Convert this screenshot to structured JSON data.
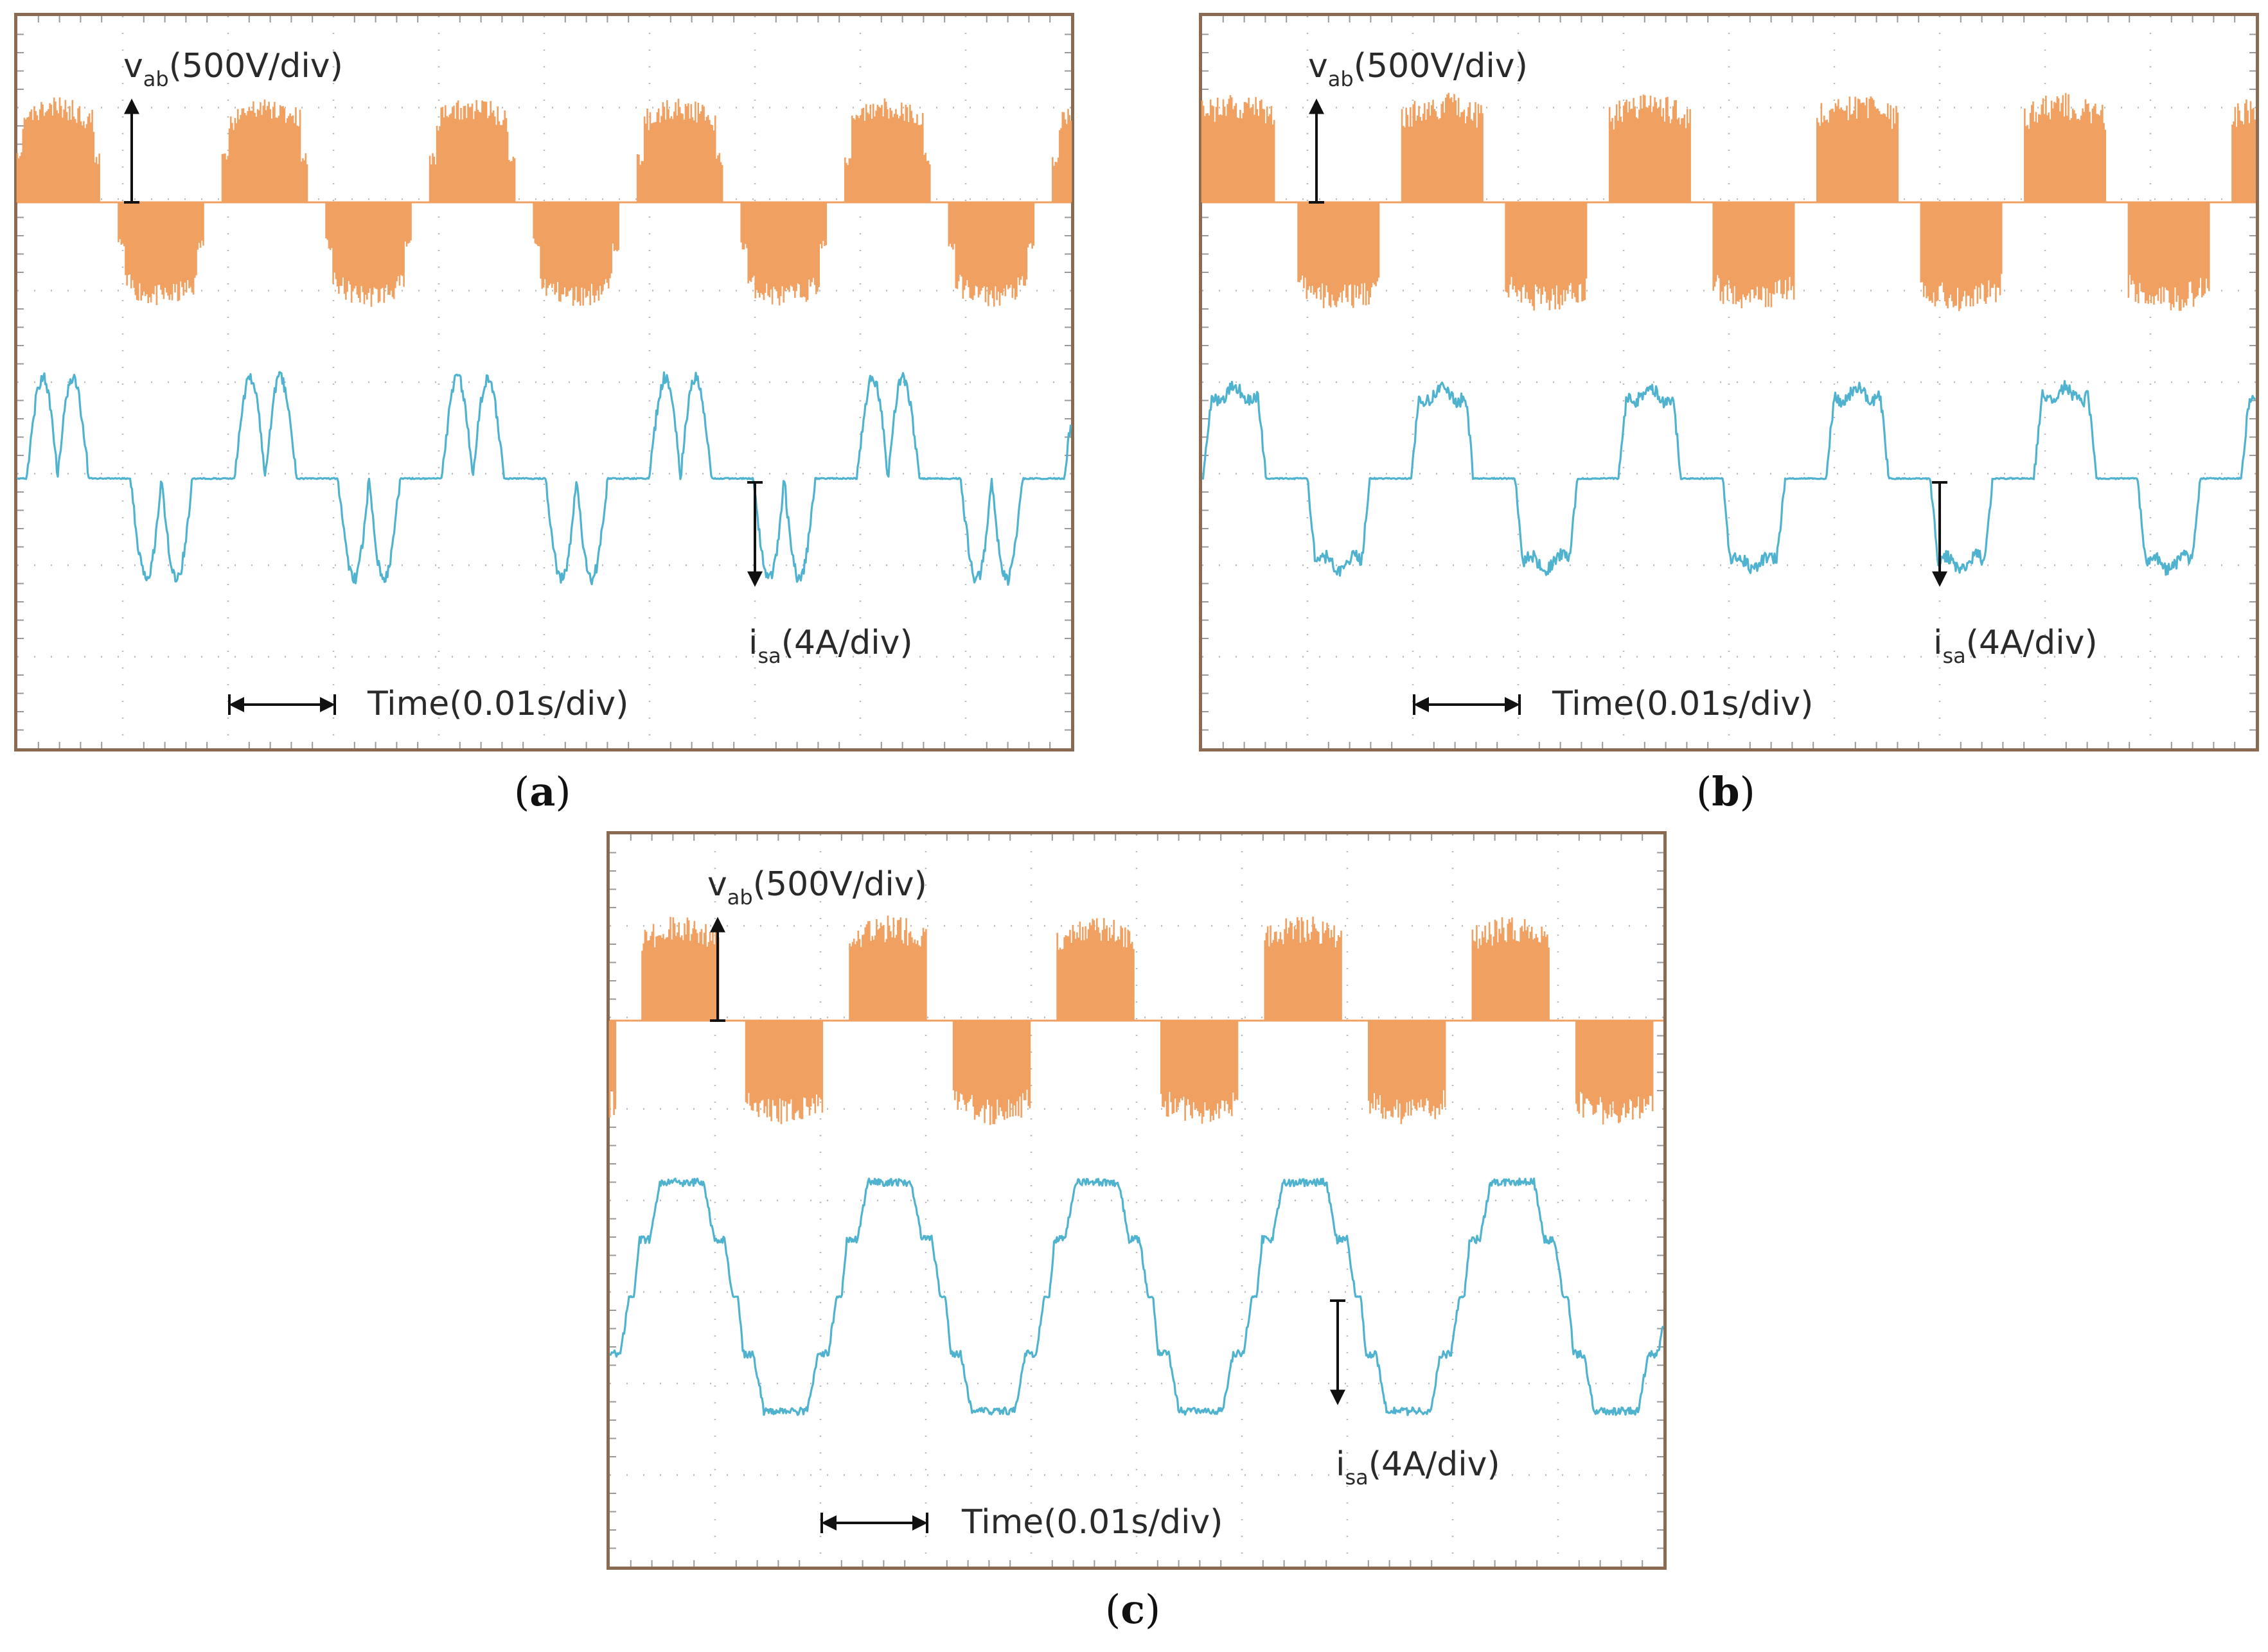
{
  "figure": {
    "panels": [
      {
        "id": "a",
        "caption_letter": "a",
        "voltage_label": {
          "symbol": "v",
          "sub": "ab",
          "scale": "(500V/div)"
        },
        "current_label": {
          "symbol": "i",
          "sub": "sa",
          "scale": "(4A/div)"
        },
        "time_label": "Time(0.01s/div)"
      },
      {
        "id": "b",
        "caption_letter": "b",
        "voltage_label": {
          "symbol": "v",
          "sub": "ab",
          "scale": "(500V/div)"
        },
        "current_label": {
          "symbol": "i",
          "sub": "sa",
          "scale": "(4A/div)"
        },
        "time_label": "Time(0.01s/div)"
      },
      {
        "id": "c",
        "caption_letter": "c",
        "voltage_label": {
          "symbol": "v",
          "sub": "ab",
          "scale": "(500V/div)"
        },
        "current_label": {
          "symbol": "i",
          "sub": "sa",
          "scale": "(4A/div)"
        },
        "time_label": "Time(0.01s/div)"
      }
    ]
  },
  "chart_data": [
    {
      "type": "line",
      "panel": "a",
      "grid": true,
      "x_divisions": 10,
      "y_divisions": 8,
      "time_per_div_s": 0.01,
      "series": [
        {
          "name": "vab",
          "units": "V",
          "scale_per_div": 500,
          "color": "#f0a060",
          "waveform": "quasi-square PWM pulse train",
          "start_phase": "positive",
          "half_period_divisions": 1.0,
          "dead_band_divisions": 0.17,
          "amplitude_divisions": 1.15,
          "ripple_divisions": 0.25,
          "pulse_count": 10
        },
        {
          "name": "isa",
          "units": "A",
          "scale_per_div": 4,
          "color": "#4fb3cf",
          "waveform": "double-hump (M-shaped) pulses",
          "start_phase": "positive",
          "half_period_divisions": 1.0,
          "dead_band_divisions": 0.42,
          "amplitude_divisions": 1.15,
          "pulse_count": 10
        }
      ]
    },
    {
      "type": "line",
      "panel": "b",
      "grid": true,
      "x_divisions": 10,
      "y_divisions": 8,
      "time_per_div_s": 0.01,
      "series": [
        {
          "name": "vab",
          "units": "V",
          "scale_per_div": 500,
          "color": "#f0a060",
          "waveform": "quasi-square PWM pulse train",
          "start_phase": "positive",
          "half_period_divisions": 1.0,
          "dead_band_divisions": 0.22,
          "amplitude_divisions": 1.2,
          "ripple_divisions": 0.3,
          "pulse_count": 10
        },
        {
          "name": "isa",
          "units": "A",
          "scale_per_div": 4,
          "color": "#4fb3cf",
          "waveform": "trapezoidal pulses with dimpled top",
          "start_phase": "positive",
          "half_period_divisions": 1.0,
          "dead_band_divisions": 0.4,
          "amplitude_divisions": 1.0,
          "pulse_count": 10
        }
      ]
    },
    {
      "type": "line",
      "panel": "c",
      "grid": true,
      "x_divisions": 10,
      "y_divisions": 8,
      "time_per_div_s": 0.01,
      "series": [
        {
          "name": "vab",
          "units": "V",
          "scale_per_div": 500,
          "color": "#f0a060",
          "waveform": "quasi-square PWM pulse train",
          "start_phase": "positive",
          "half_period_divisions": 1.0,
          "dead_band_divisions": 0.25,
          "amplitude_divisions": 1.15,
          "ripple_divisions": 0.3,
          "pulse_count": 10
        },
        {
          "name": "isa",
          "units": "A",
          "scale_per_div": 4,
          "color": "#4fb3cf",
          "waveform": "trapezoidal with shelf steps",
          "start_phase": "rising",
          "half_period_divisions": 1.0,
          "amplitude_divisions": 1.25,
          "pulse_count": 10
        }
      ]
    }
  ]
}
